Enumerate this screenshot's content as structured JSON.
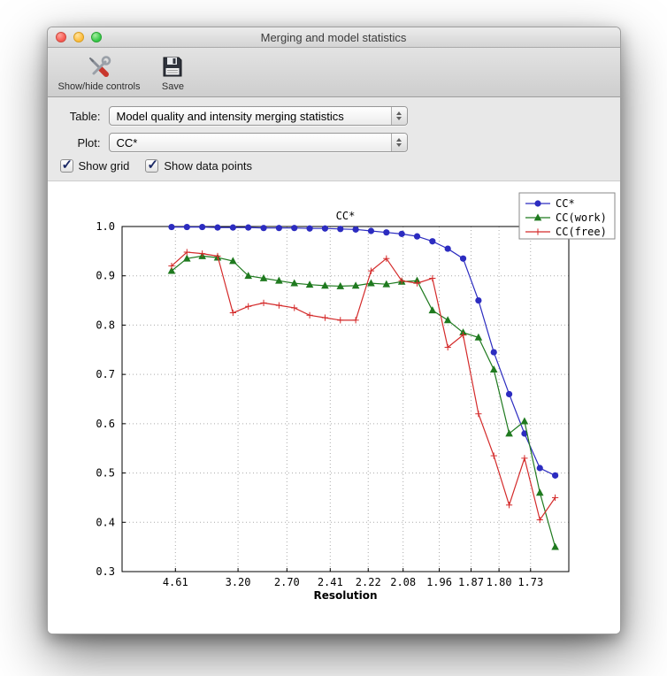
{
  "window": {
    "title": "Merging and model statistics"
  },
  "toolbar": {
    "items": [
      {
        "label": "Show/hide controls",
        "icon": "wrench-screwdriver-icon"
      },
      {
        "label": "Save",
        "icon": "save-floppy-icon"
      }
    ]
  },
  "controls": {
    "table": {
      "label": "Table:",
      "value": "Model quality and intensity merging statistics"
    },
    "plot": {
      "label": "Plot:",
      "value": "CC*"
    },
    "checkboxes": [
      {
        "label": "Show grid",
        "checked": true
      },
      {
        "label": "Show data points",
        "checked": true
      }
    ]
  },
  "chart_data": {
    "type": "line",
    "title": "CC*",
    "xlabel": "Resolution",
    "ylabel": "",
    "grid": true,
    "show_markers": true,
    "legend_position": "upper right",
    "ylim": [
      0.3,
      1.0
    ],
    "yticks": [
      0.3,
      0.4,
      0.5,
      0.6,
      0.7,
      0.8,
      0.9,
      1.0
    ],
    "x_axis_note": "resolution shells in angstroms, spacing proportional to 1/d^2",
    "xlim": [
      0.004,
      0.365
    ],
    "xticks": [
      {
        "label": "4.61",
        "s": 0.0471
      },
      {
        "label": "3.20",
        "s": 0.0977
      },
      {
        "label": "2.70",
        "s": 0.1372
      },
      {
        "label": "2.41",
        "s": 0.1722
      },
      {
        "label": "2.22",
        "s": 0.2029
      },
      {
        "label": "2.08",
        "s": 0.2311
      },
      {
        "label": "1.96",
        "s": 0.2603
      },
      {
        "label": "1.87",
        "s": 0.286
      },
      {
        "label": "1.80",
        "s": 0.3086
      },
      {
        "label": "1.73",
        "s": 0.3341
      }
    ],
    "x_s": [
      0.044,
      0.0564,
      0.0688,
      0.0812,
      0.0936,
      0.106,
      0.1184,
      0.1308,
      0.1432,
      0.1556,
      0.168,
      0.1804,
      0.1928,
      0.2052,
      0.2176,
      0.23,
      0.2424,
      0.2548,
      0.2672,
      0.2796,
      0.292,
      0.3044,
      0.3168,
      0.3292,
      0.3416,
      0.354
    ],
    "series": [
      {
        "name": "CC*",
        "color": "#2c2cc0",
        "marker": "circle",
        "values": [
          0.999,
          0.999,
          0.999,
          0.998,
          0.998,
          0.998,
          0.997,
          0.997,
          0.997,
          0.996,
          0.996,
          0.995,
          0.994,
          0.991,
          0.988,
          0.985,
          0.98,
          0.97,
          0.955,
          0.935,
          0.85,
          0.745,
          0.66,
          0.58,
          0.51,
          0.495
        ]
      },
      {
        "name": "CC(work)",
        "color": "#1f7a1f",
        "marker": "triangle",
        "values": [
          0.91,
          0.935,
          0.94,
          0.937,
          0.93,
          0.9,
          0.895,
          0.89,
          0.885,
          0.882,
          0.88,
          0.879,
          0.88,
          0.885,
          0.883,
          0.888,
          0.89,
          0.83,
          0.81,
          0.785,
          0.775,
          0.71,
          0.58,
          0.605,
          0.46,
          0.35
        ]
      },
      {
        "name": "CC(free)",
        "color": "#d42a2a",
        "marker": "plus",
        "values": [
          0.92,
          0.948,
          0.945,
          0.94,
          0.825,
          0.838,
          0.845,
          0.84,
          0.835,
          0.82,
          0.815,
          0.81,
          0.81,
          0.91,
          0.935,
          0.89,
          0.885,
          0.895,
          0.755,
          0.78,
          0.62,
          0.535,
          0.435,
          0.53,
          0.405,
          0.45
        ]
      }
    ]
  }
}
